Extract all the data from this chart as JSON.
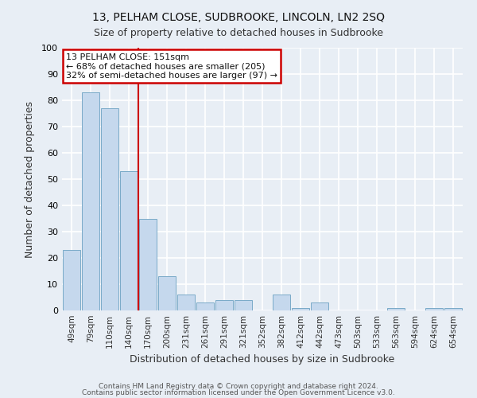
{
  "title": "13, PELHAM CLOSE, SUDBROOKE, LINCOLN, LN2 2SQ",
  "subtitle": "Size of property relative to detached houses in Sudbrooke",
  "xlabel": "Distribution of detached houses by size in Sudbrooke",
  "ylabel": "Number of detached properties",
  "categories": [
    "49sqm",
    "79sqm",
    "110sqm",
    "140sqm",
    "170sqm",
    "200sqm",
    "231sqm",
    "261sqm",
    "291sqm",
    "321sqm",
    "352sqm",
    "382sqm",
    "412sqm",
    "442sqm",
    "473sqm",
    "503sqm",
    "533sqm",
    "563sqm",
    "594sqm",
    "624sqm",
    "654sqm"
  ],
  "values": [
    23,
    83,
    77,
    53,
    35,
    13,
    6,
    3,
    4,
    4,
    0,
    6,
    1,
    3,
    0,
    0,
    0,
    1,
    0,
    1,
    1
  ],
  "bar_color": "#c5d8ed",
  "bar_edge_color": "#7aaac8",
  "background_color": "#e8eef5",
  "grid_color": "#ffffff",
  "redline_x": 3.5,
  "annotation_title": "13 PELHAM CLOSE: 151sqm",
  "annotation_line1": "← 68% of detached houses are smaller (205)",
  "annotation_line2": "32% of semi-detached houses are larger (97) →",
  "annotation_box_color": "#ffffff",
  "annotation_border_color": "#cc0000",
  "redline_color": "#cc0000",
  "ylim": [
    0,
    100
  ],
  "yticks": [
    0,
    10,
    20,
    30,
    40,
    50,
    60,
    70,
    80,
    90,
    100
  ],
  "footer1": "Contains HM Land Registry data © Crown copyright and database right 2024.",
  "footer2": "Contains public sector information licensed under the Open Government Licence v3.0."
}
